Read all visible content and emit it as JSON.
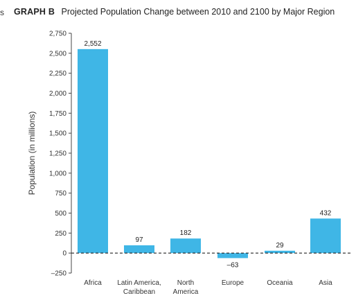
{
  "figure": {
    "left_fragment": "s",
    "label": "GRAPH B",
    "title": "Projected Population Change between 2010 and 2100 by Major Region"
  },
  "chart_data": {
    "type": "bar",
    "title": "Projected Population Change between 2010 and 2100 by Major Region",
    "xlabel": "",
    "ylabel": "Population (in millions)",
    "ylim": [
      -250,
      2750
    ],
    "yticks": [
      -250,
      0,
      250,
      500,
      750,
      1000,
      1250,
      1500,
      1750,
      2000,
      2250,
      2500,
      2750
    ],
    "ytick_labels": [
      "–250",
      "0",
      "250",
      "500",
      "750",
      "1,000",
      "1,250",
      "1,500",
      "1,750",
      "2,000",
      "2,250",
      "2,500",
      "2,750"
    ],
    "categories": [
      [
        "Africa"
      ],
      [
        "Latin America,",
        "Caribbean"
      ],
      [
        "North",
        "America"
      ],
      [
        "Europe"
      ],
      [
        "Oceania"
      ],
      [
        "Asia"
      ]
    ],
    "values": [
      2552,
      97,
      182,
      -63,
      29,
      432
    ],
    "value_labels": [
      "2,552",
      "97",
      "182",
      "–63",
      "29",
      "432"
    ],
    "grid": false,
    "zero_line": "dashed",
    "bar_color": "#3fb6e6"
  }
}
